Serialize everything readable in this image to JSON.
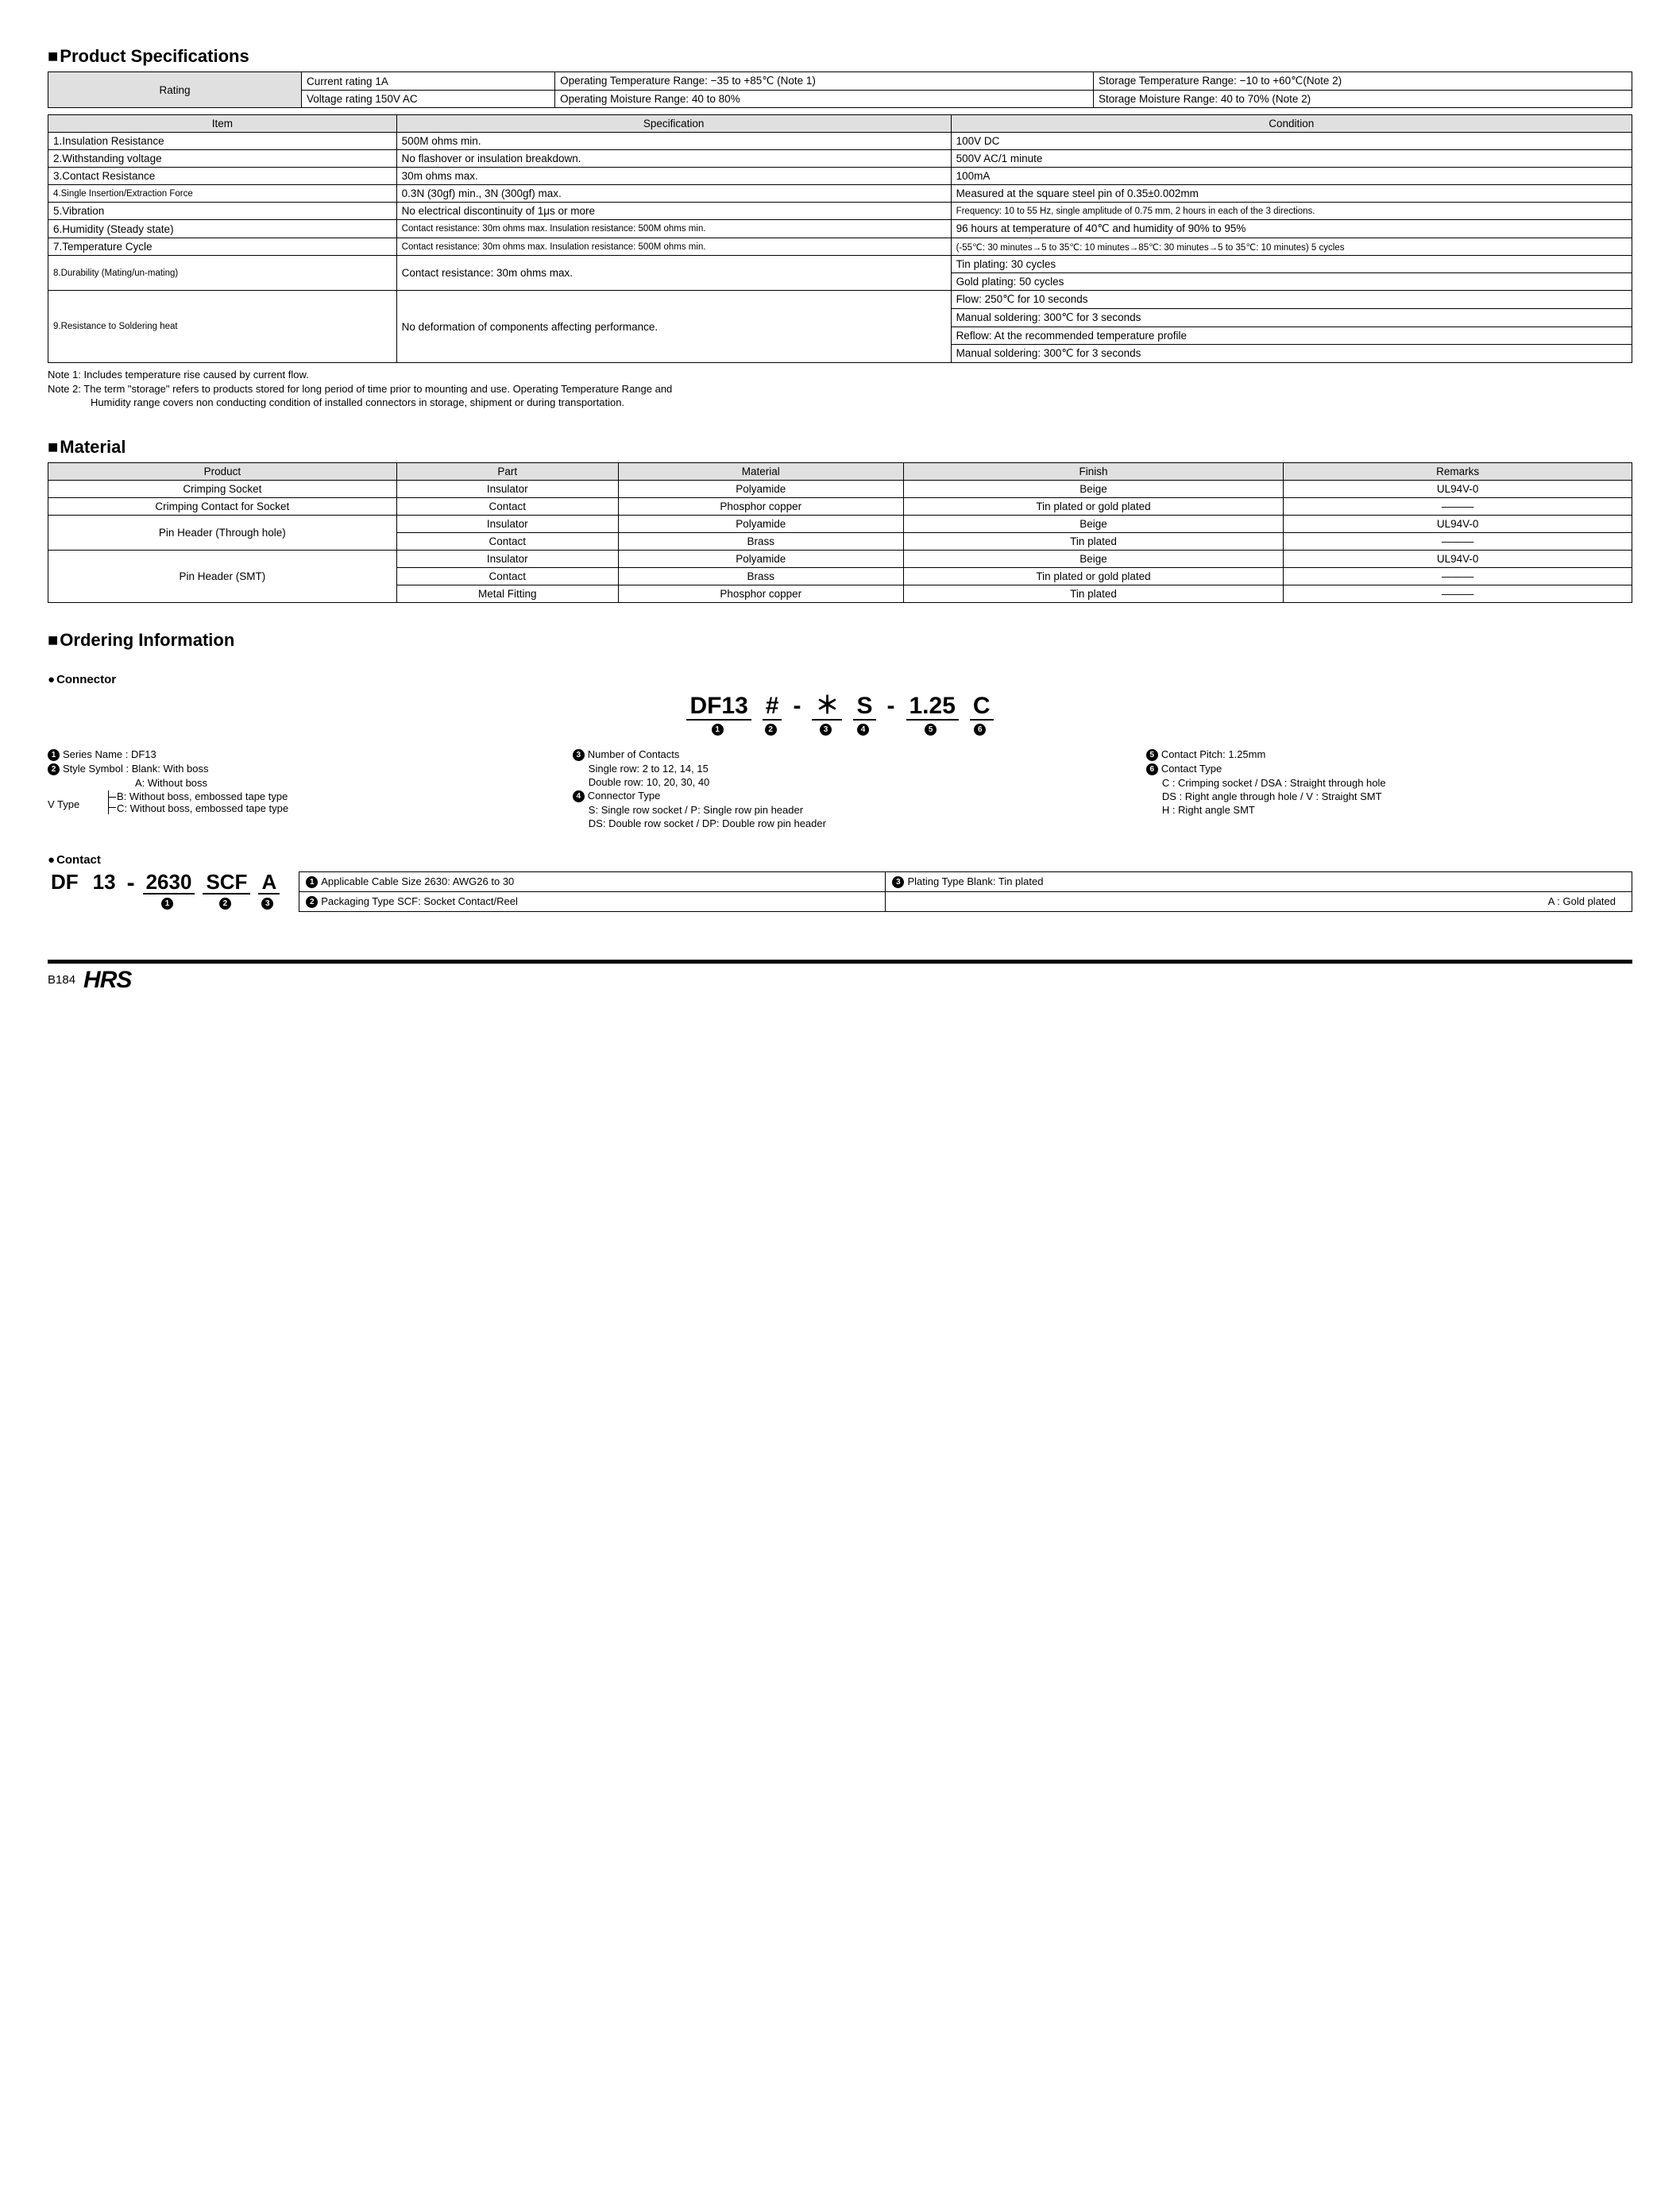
{
  "titles": {
    "spec": "Product Specifications",
    "material": "Material",
    "ordering": "Ordering Information"
  },
  "rating": {
    "label": "Rating",
    "current": "Current rating  1A",
    "voltage": "Voltage rating  150V AC",
    "op_temp": "Operating Temperature Range: −35 to +85℃ (Note 1)",
    "op_moist": "Operating Moisture Range: 40 to 80%",
    "st_temp": "Storage Temperature Range: −10 to +60℃(Note 2)",
    "st_moist": "Storage Moisture Range: 40 to 70%        (Note 2)"
  },
  "spec_headers": {
    "item": "Item",
    "spec": "Specification",
    "cond": "Condition"
  },
  "spec_rows": [
    {
      "item": "1.Insulation Resistance",
      "spec": "500M ohms min.",
      "cond": "100V DC"
    },
    {
      "item": "2.Withstanding voltage",
      "spec": "No flashover or insulation breakdown.",
      "cond": "500V AC/1 minute"
    },
    {
      "item": "3.Contact Resistance",
      "spec": "30m ohms max.",
      "cond": "100mA"
    },
    {
      "item": "4.Single Insertion/Extraction Force",
      "spec": "0.3N (30gf) min., 3N (300gf) max.",
      "cond": "Measured at the square steel pin of 0.35±0.002mm",
      "item_small": true
    },
    {
      "item": "5.Vibration",
      "spec": "No electrical discontinuity of 1μs or more",
      "cond": "Frequency: 10 to 55 Hz, single amplitude of 0.75 mm, 2 hours in each of the 3 directions.",
      "cond_small": true
    },
    {
      "item": "6.Humidity (Steady state)",
      "spec": "Contact resistance: 30m ohms max. Insulation resistance: 500M ohms min.",
      "cond": "96 hours at temperature of 40℃ and humidity of 90% to 95%",
      "spec_small": true
    },
    {
      "item": "7.Temperature Cycle",
      "spec": "Contact resistance: 30m ohms max. Insulation resistance: 500M ohms min.",
      "cond": "(-55℃: 30 minutes→5 to 35℃: 10 minutes→85℃: 30 minutes→5 to 35℃: 10 minutes) 5 cycles",
      "spec_small": true,
      "cond_small": true
    }
  ],
  "durability": {
    "item": "8.Durability (Mating/un-mating)",
    "spec": "Contact resistance: 30m ohms max.",
    "cond1": "Tin plating: 30 cycles",
    "cond2": "Gold plating: 50 cycles"
  },
  "solder": {
    "item": "9.Resistance to Soldering heat",
    "spec": "No deformation of components affecting performance.",
    "c1": "Flow: 250℃ for 10 seconds",
    "c2": "Manual soldering: 300℃ for 3 seconds",
    "c3": "Reflow: At the recommended temperature profile",
    "c4": "Manual soldering: 300℃ for 3 seconds"
  },
  "notes": {
    "n1": "Note 1: Includes temperature rise caused by current flow.",
    "n2a": "Note 2: The term \"storage\" refers to products stored for long period of time prior to mounting and use. Operating Temperature Range and",
    "n2b": "Humidity range covers non conducting condition of installed connectors in storage, shipment or during transportation."
  },
  "mat_headers": {
    "product": "Product",
    "part": "Part",
    "material": "Material",
    "finish": "Finish",
    "remarks": "Remarks"
  },
  "material_rows": {
    "r1": {
      "product": "Crimping Socket",
      "part": "Insulator",
      "material": "Polyamide",
      "finish": "Beige",
      "remarks": "UL94V-0"
    },
    "r2": {
      "product": "Crimping Contact for Socket",
      "part": "Contact",
      "material": "Phosphor copper",
      "finish": "Tin plated or gold plated",
      "remarks": "———"
    },
    "r3": {
      "product": "Pin Header (Through hole)",
      "part": "Insulator",
      "material": "Polyamide",
      "finish": "Beige",
      "remarks": "UL94V-0"
    },
    "r4": {
      "part": "Contact",
      "material": "Brass",
      "finish": "Tin plated",
      "remarks": "———"
    },
    "r5": {
      "product": "Pin Header (SMT)",
      "part": "Insulator",
      "material": "Polyamide",
      "finish": "Beige",
      "remarks": "UL94V-0"
    },
    "r6": {
      "part": "Contact",
      "material": "Brass",
      "finish": "Tin plated or gold plated",
      "remarks": "———"
    },
    "r7": {
      "part": "Metal Fitting",
      "material": "Phosphor copper",
      "finish": "Tin plated",
      "remarks": "———"
    }
  },
  "connector_sub": "Connector",
  "contact_sub": "Contact",
  "pc1": {
    "s1": "DF13",
    "s2": "#",
    "s3": "＊",
    "s4": "S",
    "s5": "1.25",
    "s6": "C"
  },
  "ord": {
    "l1": "Series Name      : DF13",
    "l2": "Style Symbol     : Blank: With boss",
    "l2a": "A: Without boss",
    "vtype": "V Type",
    "l2b": "B: Without boss, embossed tape type",
    "l2c": "C: Without boss, embossed tape type",
    "l3": "Number of Contacts",
    "l3a": "Single row: 2 to 12, 14, 15",
    "l3b": "Double row: 10, 20, 30, 40",
    "l4": "Connector Type",
    "l4a": "S: Single row socket / P: Single row pin header",
    "l4b": "DS: Double row socket / DP: Double row pin header",
    "l5": "Contact Pitch: 1.25mm",
    "l6": "Contact Type",
    "l6a": "C : Crimping socket / DSA : Straight through hole",
    "l6b": "DS : Right angle through hole / V : Straight SMT",
    "l6c": "H : Right angle SMT"
  },
  "pc2": {
    "s0": "DF",
    "s1": "13",
    "s2": "2630",
    "s3": "SCF",
    "s4": "A"
  },
  "contact_tbl": {
    "c1": "Applicable Cable Size  2630: AWG26 to 30",
    "c2": "Packaging Type  SCF: Socket Contact/Reel",
    "c3a": "Plating Type    Blank: Tin plated",
    "c3b": "A    : Gold plated"
  },
  "footer": {
    "page": "B184",
    "logo": "HRS"
  }
}
